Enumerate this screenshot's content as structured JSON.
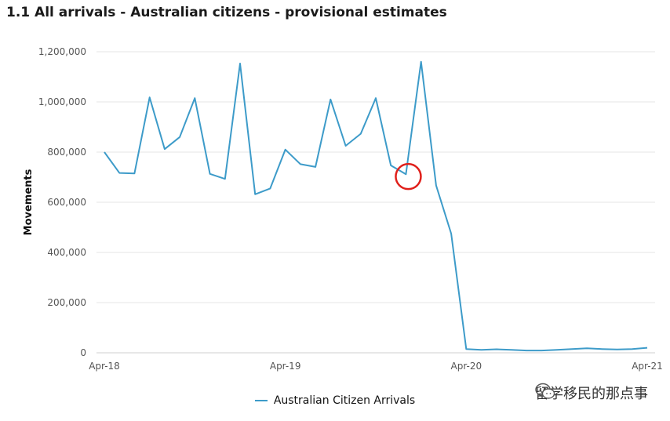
{
  "title": "1.1 All arrivals - Australian citizens - provisional estimates",
  "watermark": {
    "text": "留学移民的那点事",
    "icon": "wechat-icon"
  },
  "colors": {
    "series": "#3d9bc9",
    "highlight": "#e0201b",
    "grid": "#e6e6e6"
  },
  "chart_data": {
    "type": "line",
    "title": "1.1 All arrivals - Australian citizens - provisional estimates",
    "xlabel": "",
    "ylabel": "Movements",
    "ylim": [
      0,
      1200000
    ],
    "yticks": [
      0,
      200000,
      400000,
      600000,
      800000,
      1000000,
      1200000
    ],
    "ytick_labels": [
      "0",
      "200,000",
      "400,000",
      "600,000",
      "800,000",
      "1,000,000",
      "1,200,000"
    ],
    "xtick_labels": [
      "Apr-18",
      "Apr-19",
      "Apr-20",
      "Apr-21"
    ],
    "x": [
      "Apr-18",
      "May-18",
      "Jun-18",
      "Jul-18",
      "Aug-18",
      "Sep-18",
      "Oct-18",
      "Nov-18",
      "Dec-18",
      "Jan-19",
      "Feb-19",
      "Mar-19",
      "Apr-19",
      "May-19",
      "Jun-19",
      "Jul-19",
      "Aug-19",
      "Sep-19",
      "Oct-19",
      "Nov-19",
      "Dec-19",
      "Jan-20",
      "Feb-20",
      "Mar-20",
      "Apr-20",
      "May-20",
      "Jun-20",
      "Jul-20",
      "Aug-20",
      "Sep-20",
      "Oct-20",
      "Nov-20",
      "Dec-20",
      "Jan-21",
      "Feb-21",
      "Mar-21",
      "Apr-21"
    ],
    "series": [
      {
        "name": "Australian Citizen Arrivals",
        "values": [
          800000,
          717000,
          715000,
          1018000,
          812000,
          860000,
          1015000,
          713000,
          693000,
          1153000,
          632000,
          655000,
          810000,
          752000,
          741000,
          1010000,
          825000,
          873000,
          1015000,
          747000,
          712000,
          1160000,
          667000,
          475000,
          15000,
          12000,
          14000,
          12000,
          9000,
          9000,
          12000,
          15000,
          18000,
          15000,
          13000,
          15000,
          20000
        ]
      }
    ],
    "annotations": [
      {
        "type": "circle",
        "at": "Dec-19"
      }
    ],
    "grid": true,
    "legend_position": "bottom"
  }
}
